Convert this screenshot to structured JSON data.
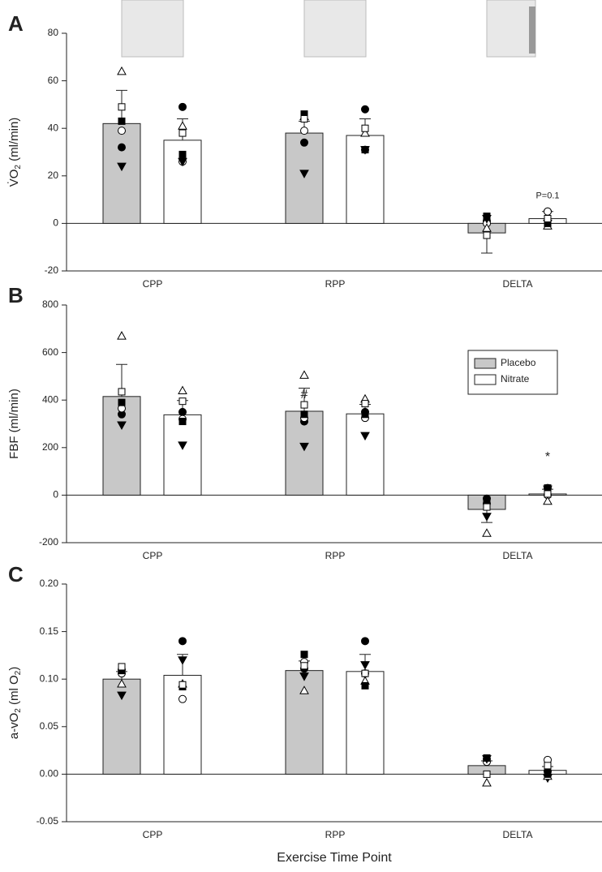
{
  "chart_data": [
    {
      "type": "bar",
      "panel": "A",
      "ylabel": [
        "V̇O",
        "2",
        " (ml/min)"
      ],
      "categories": [
        "CPP",
        "RPP",
        "DELTA"
      ],
      "ylim": [
        -20,
        80
      ],
      "yticks": [
        -20,
        0,
        20,
        40,
        60,
        80
      ],
      "markers": [
        "filled-circle",
        "open-circle",
        "filled-triangle-down",
        "open-triangle-up",
        "filled-square",
        "open-square"
      ],
      "series": [
        {
          "name": "Placebo",
          "color": "#c8c8c8",
          "values": [
            42,
            38,
            -4
          ],
          "errors": [
            14,
            5,
            8.5
          ],
          "points": [
            [
              32,
              39,
              24,
              64,
              43,
              49
            ],
            [
              34,
              39,
              21,
              45,
              46,
              44
            ],
            [
              1,
              0,
              2,
              -2,
              3,
              -5
            ]
          ]
        },
        {
          "name": "Nitrate",
          "color": "#ffffff",
          "values": [
            35,
            37,
            2
          ],
          "errors": [
            9,
            7,
            3
          ],
          "points": [
            [
              49,
              26,
              26,
              41,
              29,
              38
            ],
            [
              48,
              31,
              31,
              38,
              31,
              40
            ],
            [
              5,
              5,
              0,
              -1,
              0,
              2
            ]
          ]
        }
      ],
      "annotations": [
        "P=0.1"
      ]
    },
    {
      "type": "bar",
      "panel": "B",
      "ylabel": [
        "FBF (ml/min)"
      ],
      "categories": [
        "CPP",
        "RPP",
        "DELTA"
      ],
      "ylim": [
        -200,
        800
      ],
      "yticks": [
        -200,
        0,
        200,
        400,
        600,
        800
      ],
      "markers": [
        "filled-circle",
        "open-circle",
        "filled-triangle-down",
        "open-triangle-up",
        "filled-square",
        "open-square"
      ],
      "legend": "upper right",
      "series": [
        {
          "name": "Placebo",
          "color": "#c8c8c8",
          "values": [
            415,
            353,
            -60
          ],
          "errors": [
            135,
            97,
            55
          ],
          "points": [
            [
              340,
              365,
              295,
              670,
              390,
              435
            ],
            [
              310,
              325,
              205,
              505,
              340,
              380
            ],
            [
              -15,
              -35,
              -90,
              -160,
              -20,
              -50
            ]
          ]
        },
        {
          "name": "Nitrate",
          "color": "#ffffff",
          "values": [
            338,
            342,
            5
          ],
          "errors": [
            60,
            40,
            20
          ],
          "points": [
            [
              350,
              320,
              210,
              440,
              310,
              395
            ],
            [
              350,
              325,
              250,
              405,
              340,
              385
            ],
            [
              30,
              0,
              25,
              -25,
              30,
              5
            ]
          ]
        }
      ],
      "annotations": [
        "#",
        "*"
      ]
    },
    {
      "type": "bar",
      "panel": "C",
      "ylabel": [
        "a-vO",
        "2",
        " (ml O",
        "2",
        ")"
      ],
      "xlabel": "Exercise Time Point",
      "categories": [
        "CPP",
        "RPP",
        "DELTA"
      ],
      "ylim": [
        -0.05,
        0.2
      ],
      "yticks": [
        -0.05,
        {
          "value": 0,
          "label": "0.00"
        },
        0.05,
        {
          "value": 0.1,
          "label": "0.10"
        },
        0.15,
        {
          "value": 0.2,
          "label": "0.20"
        }
      ],
      "markers": [
        "filled-circle",
        "open-circle",
        "filled-triangle-down",
        "open-triangle-up",
        "filled-square",
        "open-square"
      ],
      "series": [
        {
          "name": "Placebo",
          "color": "#c8c8c8",
          "values": [
            0.1,
            0.109,
            0.009
          ],
          "errors": [
            0.008,
            0.01,
            0.005
          ],
          "points": [
            [
              0.11,
              0.106,
              0.083,
              0.095,
              0.109,
              0.113
            ],
            [
              0.111,
              0.118,
              0.103,
              0.088,
              0.126,
              0.114
            ],
            [
              0.016,
              0.013,
              0.016,
              -0.009,
              0.017,
              0
            ]
          ]
        },
        {
          "name": "Nitrate",
          "color": "#ffffff",
          "values": [
            0.104,
            0.108,
            0.004
          ],
          "errors": [
            0.022,
            0.018,
            0.004
          ],
          "points": [
            [
              0.14,
              0.079,
              0.12,
              0.095,
              0.092,
              0.094
            ],
            [
              0.14,
              0.106,
              0.115,
              0.098,
              0.093,
              0.106
            ],
            [
              0.003,
              0.015,
              -0.004,
              -0.002,
              0,
              0.009
            ]
          ]
        }
      ]
    }
  ]
}
